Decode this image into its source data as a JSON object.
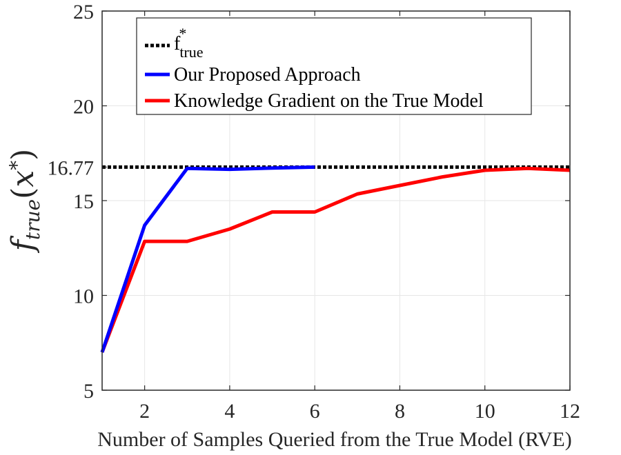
{
  "chart_data": {
    "type": "line",
    "xlabel": "Number of Samples Queried from the True Model (RVE)",
    "ylabel": {
      "f": "f",
      "sub": "true",
      "open": "(",
      "x": "x",
      "star": "*",
      "close": ")"
    },
    "xlim": [
      1,
      12
    ],
    "ylim": [
      5,
      25
    ],
    "x_ticks": [
      "2",
      "4",
      "6",
      "8",
      "10",
      "12"
    ],
    "x_tick_values": [
      2,
      4,
      6,
      8,
      10,
      12
    ],
    "y_ticks": [
      "5",
      "10",
      "15",
      "20",
      "25"
    ],
    "y_tick_values": [
      5,
      10,
      15,
      20,
      25
    ],
    "extra_y_tick": {
      "label": "16.77",
      "value": 16.77
    },
    "grid": true,
    "legend_position": "top-center",
    "series": [
      {
        "name": "Our Proposed Approach",
        "color": "#0000ff",
        "style": "solid",
        "x": [
          1,
          2,
          3,
          4,
          5,
          6
        ],
        "y": [
          7.0,
          13.7,
          16.7,
          16.65,
          16.72,
          16.77
        ]
      },
      {
        "name": "Knowledge Gradient on the True Model",
        "color": "#ff0000",
        "style": "solid",
        "x": [
          1,
          2,
          3,
          4,
          5,
          6,
          7,
          8,
          9,
          10,
          11,
          12
        ],
        "y": [
          7.0,
          12.85,
          12.85,
          13.5,
          14.4,
          14.4,
          15.35,
          15.8,
          16.25,
          16.6,
          16.7,
          16.6
        ]
      }
    ],
    "reference_line": {
      "value": 16.77,
      "color": "#000000",
      "style": "dotted",
      "legend_f": "f",
      "legend_sup": "*",
      "legend_sub": "true"
    }
  }
}
